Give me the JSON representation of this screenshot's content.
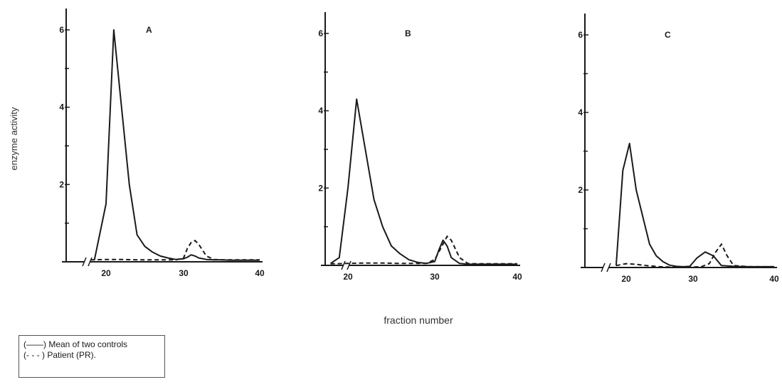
{
  "figure": {
    "ylabel": "enzyme activity",
    "xlabel": "fraction number",
    "legend": {
      "entries": [
        "(——) Mean of two controls",
        "(- - - ) Patient (PR)."
      ]
    }
  },
  "chart_data": [
    {
      "type": "line",
      "panel": "A",
      "xlim": [
        14,
        40
      ],
      "ylim": [
        0,
        6.5
      ],
      "x_ticks": [
        20,
        30,
        40
      ],
      "y_ticks": [
        2,
        4,
        6
      ],
      "series": [
        {
          "name": "Mean of two controls",
          "style": "solid",
          "x": [
            18.5,
            20,
            21,
            22,
            23,
            24,
            25,
            26,
            27,
            28,
            29,
            30,
            30.5,
            31,
            31.5,
            32,
            33,
            34,
            35,
            36,
            37,
            38,
            39,
            40
          ],
          "y": [
            0.05,
            1.5,
            6.0,
            4.0,
            2.0,
            0.7,
            0.4,
            0.25,
            0.15,
            0.1,
            0.06,
            0.08,
            0.12,
            0.18,
            0.15,
            0.1,
            0.06,
            0.05,
            0.05,
            0.04,
            0.04,
            0.04,
            0.04,
            0.04
          ]
        },
        {
          "name": "Patient (PR)",
          "style": "dashed",
          "x": [
            18,
            20,
            22,
            24,
            26,
            28,
            29,
            30,
            30.5,
            31,
            31.5,
            32,
            33,
            34,
            35,
            36,
            38,
            40
          ],
          "y": [
            0.05,
            0.06,
            0.06,
            0.05,
            0.05,
            0.05,
            0.05,
            0.1,
            0.35,
            0.5,
            0.55,
            0.45,
            0.15,
            0.06,
            0.05,
            0.05,
            0.05,
            0.05
          ]
        }
      ]
    },
    {
      "type": "line",
      "panel": "B",
      "xlim": [
        14,
        40
      ],
      "ylim": [
        0,
        6.5
      ],
      "x_ticks": [
        20,
        30,
        40
      ],
      "y_ticks": [
        2,
        4,
        6
      ],
      "series": [
        {
          "name": "Mean of two controls",
          "style": "solid",
          "x": [
            18,
            19,
            20,
            21,
            22,
            23,
            24,
            25,
            26,
            27,
            28,
            29,
            30,
            30.5,
            31,
            31.5,
            32,
            33,
            34,
            35,
            36,
            38,
            40
          ],
          "y": [
            0.05,
            0.2,
            2.0,
            4.3,
            3.0,
            1.7,
            1.0,
            0.5,
            0.3,
            0.15,
            0.08,
            0.05,
            0.1,
            0.4,
            0.65,
            0.5,
            0.2,
            0.05,
            0.03,
            0.03,
            0.03,
            0.03,
            0.03
          ]
        },
        {
          "name": "Patient (PR)",
          "style": "dashed",
          "x": [
            18,
            20,
            22,
            24,
            26,
            28,
            29,
            30,
            31,
            31.5,
            32,
            33,
            34,
            35,
            36,
            38,
            40
          ],
          "y": [
            0.04,
            0.05,
            0.06,
            0.06,
            0.05,
            0.05,
            0.05,
            0.15,
            0.55,
            0.75,
            0.65,
            0.2,
            0.05,
            0.04,
            0.04,
            0.04,
            0.04
          ]
        }
      ]
    },
    {
      "type": "line",
      "panel": "C",
      "xlim": [
        14,
        40
      ],
      "ylim": [
        0,
        6.5
      ],
      "x_ticks": [
        20,
        30,
        40
      ],
      "y_ticks": [
        2,
        4,
        6
      ],
      "series": [
        {
          "name": "Mean of two controls",
          "style": "solid",
          "x": [
            18.5,
            19.5,
            20.5,
            21.5,
            22.5,
            23.5,
            24.5,
            25.5,
            26.5,
            27.5,
            28.5,
            29.5,
            30.5,
            31.5,
            32.5,
            33.5,
            35,
            37,
            40
          ],
          "y": [
            0.05,
            2.5,
            3.2,
            2.0,
            1.3,
            0.6,
            0.3,
            0.15,
            0.06,
            0.03,
            0.02,
            0.03,
            0.25,
            0.4,
            0.3,
            0.05,
            0.03,
            0.02,
            0.02
          ]
        },
        {
          "name": "Patient (PR)",
          "style": "dashed",
          "x": [
            18.5,
            20,
            21.5,
            23,
            25,
            27,
            29,
            31,
            32,
            32.8,
            33.5,
            34.2,
            35,
            37,
            40
          ],
          "y": [
            0.05,
            0.1,
            0.08,
            0.05,
            0.02,
            0.01,
            0.01,
            0.02,
            0.1,
            0.4,
            0.6,
            0.3,
            0.05,
            0.02,
            0.02
          ]
        }
      ]
    }
  ]
}
